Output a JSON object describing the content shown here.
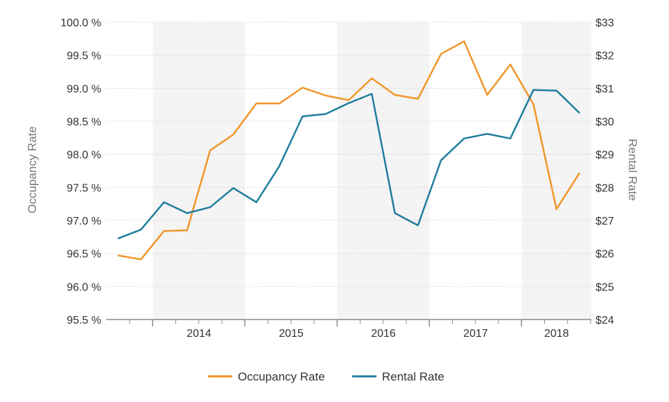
{
  "chart_data": {
    "type": "line",
    "title": "",
    "x_axis": {
      "labels": [
        "2014",
        "2015",
        "2016",
        "2017",
        "2018"
      ],
      "shaded_bands": [
        "2014",
        "2016",
        "2018"
      ]
    },
    "y_axis_left": {
      "label": "Occupancy Rate",
      "range": [
        95.5,
        100.0
      ],
      "ticks": [
        "95.5 %",
        "96.0 %",
        "96.5 %",
        "97.0 %",
        "97.5 %",
        "98.0 %",
        "98.5 %",
        "99.0 %",
        "99.5 %",
        "100.0 %"
      ]
    },
    "y_axis_right": {
      "label": "Rental Rate",
      "range": [
        24,
        33
      ],
      "ticks": [
        "$24",
        "$25",
        "$26",
        "$27",
        "$28",
        "$29",
        "$30",
        "$31",
        "$32",
        "$33"
      ]
    },
    "x": [
      "2013 Q2",
      "2013 Q3",
      "2013 Q4",
      "2014 Q1",
      "2014 Q2",
      "2014 Q3",
      "2014 Q4",
      "2015 Q1",
      "2015 Q2",
      "2015 Q3",
      "2015 Q4",
      "2016 Q1",
      "2016 Q2",
      "2016 Q3",
      "2016 Q4",
      "2017 Q1",
      "2017 Q2",
      "2017 Q3",
      "2017 Q4",
      "2018 Q1",
      "2018 Q2"
    ],
    "series": [
      {
        "name": "Occupancy Rate",
        "axis": "left",
        "color": "#f0962a",
        "values": [
          96.47,
          96.41,
          96.84,
          96.85,
          98.06,
          98.3,
          98.77,
          98.77,
          99.01,
          98.89,
          98.82,
          99.15,
          98.9,
          98.84,
          99.52,
          99.71,
          98.9,
          99.36,
          98.76,
          97.17,
          97.72
        ]
      },
      {
        "name": "Rental Rate",
        "axis": "right",
        "color": "#1f7d9e",
        "values": [
          26.45,
          26.72,
          27.55,
          27.22,
          27.4,
          27.98,
          27.55,
          28.65,
          30.15,
          30.22,
          30.55,
          30.83,
          27.22,
          26.85,
          28.82,
          29.48,
          29.62,
          29.48,
          30.95,
          30.93,
          30.25
        ]
      }
    ],
    "grid": "horizontal dashed",
    "legend": {
      "position": "bottom-center"
    }
  }
}
